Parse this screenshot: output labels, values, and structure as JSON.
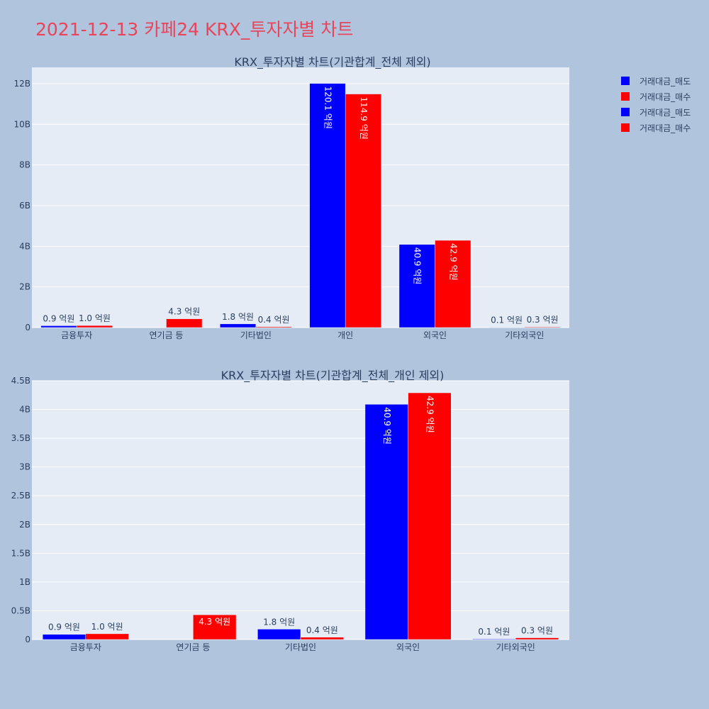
{
  "page_title": "2021-12-13 카페24 KRX_투자자별 차트",
  "colors": {
    "sell": "#0000ff",
    "buy": "#ff0000",
    "plot_bg": "#e5ecf6",
    "paper_bg": "#b0c4de",
    "title": "#e8455a"
  },
  "legend": {
    "placement": "top-right",
    "items": [
      {
        "name": "거래대금_매도",
        "color": "#0000ff"
      },
      {
        "name": "거래대금_매수",
        "color": "#ff0000"
      },
      {
        "name": "거래대금_매도",
        "color": "#0000ff"
      },
      {
        "name": "거래대금_매수",
        "color": "#ff0000"
      }
    ]
  },
  "chart_data": [
    {
      "type": "bar",
      "title": "KRX_투자자별 차트(기관합계_전체 제외)",
      "categories": [
        "금융투자",
        "연기금 등",
        "기타법인",
        "개인",
        "외국인",
        "기타외국인"
      ],
      "ylim": [
        0,
        12800000000
      ],
      "yticks": [
        0,
        2000000000,
        4000000000,
        6000000000,
        8000000000,
        10000000000,
        12000000000
      ],
      "ytick_labels": [
        "0",
        "2B",
        "4B",
        "6B",
        "8B",
        "10B",
        "12B"
      ],
      "grid": true,
      "series": [
        {
          "name": "거래대금_매도",
          "color": "#0000ff",
          "values": [
            90000000,
            0,
            180000000,
            12010000000,
            4090000000,
            10000000
          ],
          "labels": [
            "0.9 억원",
            "",
            "1.8 억원",
            "120.1 억원",
            "40.9 억원",
            "0.1 억원"
          ]
        },
        {
          "name": "거래대금_매수",
          "color": "#ff0000",
          "values": [
            100000000,
            430000000,
            40000000,
            11490000000,
            4290000000,
            30000000
          ],
          "labels": [
            "1.0 억원",
            "4.3 억원",
            "0.4 억원",
            "114.9 억원",
            "42.9 억원",
            "0.3 억원"
          ]
        }
      ]
    },
    {
      "type": "bar",
      "title": "KRX_투자자별 차트(기관합계_전체_개인 제외)",
      "categories": [
        "금융투자",
        "연기금 등",
        "기타법인",
        "외국인",
        "기타외국인"
      ],
      "ylim": [
        0,
        4500000000
      ],
      "yticks": [
        0,
        500000000,
        1000000000,
        1500000000,
        2000000000,
        2500000000,
        3000000000,
        3500000000,
        4000000000,
        4500000000
      ],
      "ytick_labels": [
        "0",
        "0.5B",
        "1B",
        "1.5B",
        "2B",
        "2.5B",
        "3B",
        "3.5B",
        "4B",
        "4.5B"
      ],
      "grid": true,
      "series": [
        {
          "name": "거래대금_매도",
          "color": "#0000ff",
          "values": [
            90000000,
            0,
            180000000,
            4090000000,
            10000000
          ],
          "labels": [
            "0.9 억원",
            "",
            "1.8 억원",
            "40.9 억원",
            "0.1 억원"
          ]
        },
        {
          "name": "거래대금_매수",
          "color": "#ff0000",
          "values": [
            100000000,
            430000000,
            40000000,
            4290000000,
            30000000
          ],
          "labels": [
            "1.0 억원",
            "4.3 억원",
            "0.4 억원",
            "42.9 억원",
            "0.3 억원"
          ]
        }
      ]
    }
  ]
}
